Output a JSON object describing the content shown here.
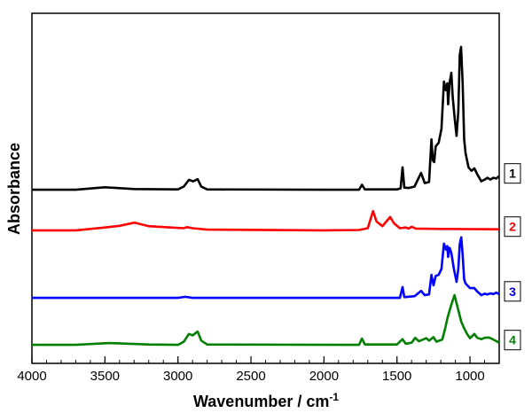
{
  "chart_data": {
    "type": "line",
    "title": "",
    "xlabel": "Wavenumber / cm",
    "xlabel_superscript": "-1",
    "ylabel": "Absorbance",
    "xlim": [
      4000,
      800
    ],
    "x_reversed": true,
    "ylim": [
      0,
      100
    ],
    "y_ticks_shown": false,
    "grid": false,
    "x_ticks": [
      "4000",
      "3500",
      "3000",
      "2500",
      "2000",
      "1500",
      "1000"
    ],
    "x_tick_values": [
      4000,
      3500,
      3000,
      2500,
      2000,
      1500,
      1000
    ],
    "x_minor_step": 100,
    "legend_placement": "right of traces, boxed numbers",
    "series": [
      {
        "label": "1",
        "color": "#000000",
        "points": [
          [
            4000,
            49.6
          ],
          [
            3700,
            49.6
          ],
          [
            3500,
            50.3
          ],
          [
            3300,
            49.8
          ],
          [
            3000,
            49.7
          ],
          [
            2960,
            50.5
          ],
          [
            2925,
            52.4
          ],
          [
            2895,
            52
          ],
          [
            2865,
            52.6
          ],
          [
            2840,
            50.5
          ],
          [
            2800,
            49.7
          ],
          [
            2000,
            49.6
          ],
          [
            1760,
            49.6
          ],
          [
            1740,
            51
          ],
          [
            1720,
            49.7
          ],
          [
            1500,
            49.7
          ],
          [
            1475,
            50
          ],
          [
            1462,
            56
          ],
          [
            1450,
            50.2
          ],
          [
            1420,
            50.1
          ],
          [
            1380,
            50.5
          ],
          [
            1335,
            54.4
          ],
          [
            1310,
            51.5
          ],
          [
            1280,
            51.8
          ],
          [
            1264,
            64
          ],
          [
            1255,
            58
          ],
          [
            1245,
            57.5
          ],
          [
            1235,
            62
          ],
          [
            1215,
            63
          ],
          [
            1195,
            67
          ],
          [
            1178,
            80.5
          ],
          [
            1165,
            78
          ],
          [
            1155,
            80
          ],
          [
            1150,
            74
          ],
          [
            1140,
            80
          ],
          [
            1128,
            83
          ],
          [
            1118,
            76
          ],
          [
            1105,
            70
          ],
          [
            1092,
            65
          ],
          [
            1080,
            72
          ],
          [
            1070,
            88
          ],
          [
            1061,
            90.4
          ],
          [
            1050,
            80
          ],
          [
            1040,
            64
          ],
          [
            1030,
            60
          ],
          [
            1010,
            56
          ],
          [
            990,
            55
          ],
          [
            970,
            55.7
          ],
          [
            950,
            54
          ],
          [
            922,
            52
          ],
          [
            900,
            52.5
          ],
          [
            880,
            53
          ],
          [
            860,
            52.5
          ],
          [
            840,
            53
          ],
          [
            820,
            52.8
          ],
          [
            800,
            53.5
          ]
        ]
      },
      {
        "label": "2",
        "color": "#ff0000",
        "points": [
          [
            4000,
            38
          ],
          [
            3700,
            38
          ],
          [
            3500,
            38.8
          ],
          [
            3400,
            39.3
          ],
          [
            3296,
            40.2
          ],
          [
            3200,
            39.2
          ],
          [
            3050,
            38.8
          ],
          [
            2960,
            38.6
          ],
          [
            2940,
            38.9
          ],
          [
            2900,
            38.6
          ],
          [
            2800,
            38.2
          ],
          [
            2000,
            38
          ],
          [
            1760,
            38.1
          ],
          [
            1700,
            38.6
          ],
          [
            1664,
            43.5
          ],
          [
            1640,
            40.5
          ],
          [
            1600,
            39.2
          ],
          [
            1547,
            41.8
          ],
          [
            1520,
            40
          ],
          [
            1480,
            38.6
          ],
          [
            1440,
            38.8
          ],
          [
            1420,
            38.5
          ],
          [
            1400,
            39
          ],
          [
            1370,
            38.5
          ],
          [
            1200,
            38.4
          ],
          [
            800,
            38.3
          ]
        ]
      },
      {
        "label": "3",
        "color": "#0000ff",
        "points": [
          [
            4000,
            18.7
          ],
          [
            3000,
            18.7
          ],
          [
            2950,
            19
          ],
          [
            2900,
            18.7
          ],
          [
            1480,
            18.7
          ],
          [
            1462,
            21.8
          ],
          [
            1450,
            18.9
          ],
          [
            1380,
            19.2
          ],
          [
            1335,
            20.7
          ],
          [
            1310,
            19.5
          ],
          [
            1280,
            19.7
          ],
          [
            1264,
            25.3
          ],
          [
            1250,
            22.3
          ],
          [
            1235,
            25
          ],
          [
            1215,
            25.3
          ],
          [
            1195,
            27
          ],
          [
            1178,
            34.2
          ],
          [
            1165,
            32.5
          ],
          [
            1155,
            33.5
          ],
          [
            1150,
            30.4
          ],
          [
            1140,
            33
          ],
          [
            1128,
            31.6
          ],
          [
            1110,
            27
          ],
          [
            1092,
            23.3
          ],
          [
            1080,
            27
          ],
          [
            1070,
            34
          ],
          [
            1060,
            36
          ],
          [
            1050,
            31
          ],
          [
            1040,
            24
          ],
          [
            1030,
            22.8
          ],
          [
            1000,
            21.5
          ],
          [
            970,
            21.5
          ],
          [
            950,
            20.5
          ],
          [
            922,
            19.5
          ],
          [
            900,
            19.9
          ],
          [
            880,
            19.7
          ],
          [
            860,
            20
          ],
          [
            840,
            19.8
          ],
          [
            820,
            20.2
          ],
          [
            800,
            19.8
          ]
        ]
      },
      {
        "label": "4",
        "color": "#008000",
        "points": [
          [
            4000,
            5.3
          ],
          [
            3700,
            5.3
          ],
          [
            3470,
            5.8
          ],
          [
            3200,
            5.4
          ],
          [
            3000,
            5.3
          ],
          [
            2960,
            6.2
          ],
          [
            2925,
            8.4
          ],
          [
            2900,
            8
          ],
          [
            2865,
            9.1
          ],
          [
            2840,
            6.5
          ],
          [
            2800,
            5.4
          ],
          [
            1760,
            5.3
          ],
          [
            1740,
            7.1
          ],
          [
            1720,
            5.4
          ],
          [
            1500,
            5.4
          ],
          [
            1462,
            6.9
          ],
          [
            1440,
            5.6
          ],
          [
            1400,
            5.9
          ],
          [
            1375,
            7.3
          ],
          [
            1350,
            6.3
          ],
          [
            1300,
            7.2
          ],
          [
            1280,
            6.5
          ],
          [
            1250,
            7.5
          ],
          [
            1230,
            6.2
          ],
          [
            1190,
            6.8
          ],
          [
            1170,
            10
          ],
          [
            1153,
            13.2
          ],
          [
            1130,
            16.5
          ],
          [
            1106,
            19.5
          ],
          [
            1085,
            16
          ],
          [
            1060,
            11.9
          ],
          [
            1040,
            10
          ],
          [
            1020,
            8.4
          ],
          [
            1000,
            7.2
          ],
          [
            970,
            8.4
          ],
          [
            950,
            7.3
          ],
          [
            922,
            6.9
          ],
          [
            900,
            7.3
          ],
          [
            870,
            7.4
          ],
          [
            840,
            6.8
          ],
          [
            800,
            5.9
          ]
        ]
      }
    ]
  }
}
